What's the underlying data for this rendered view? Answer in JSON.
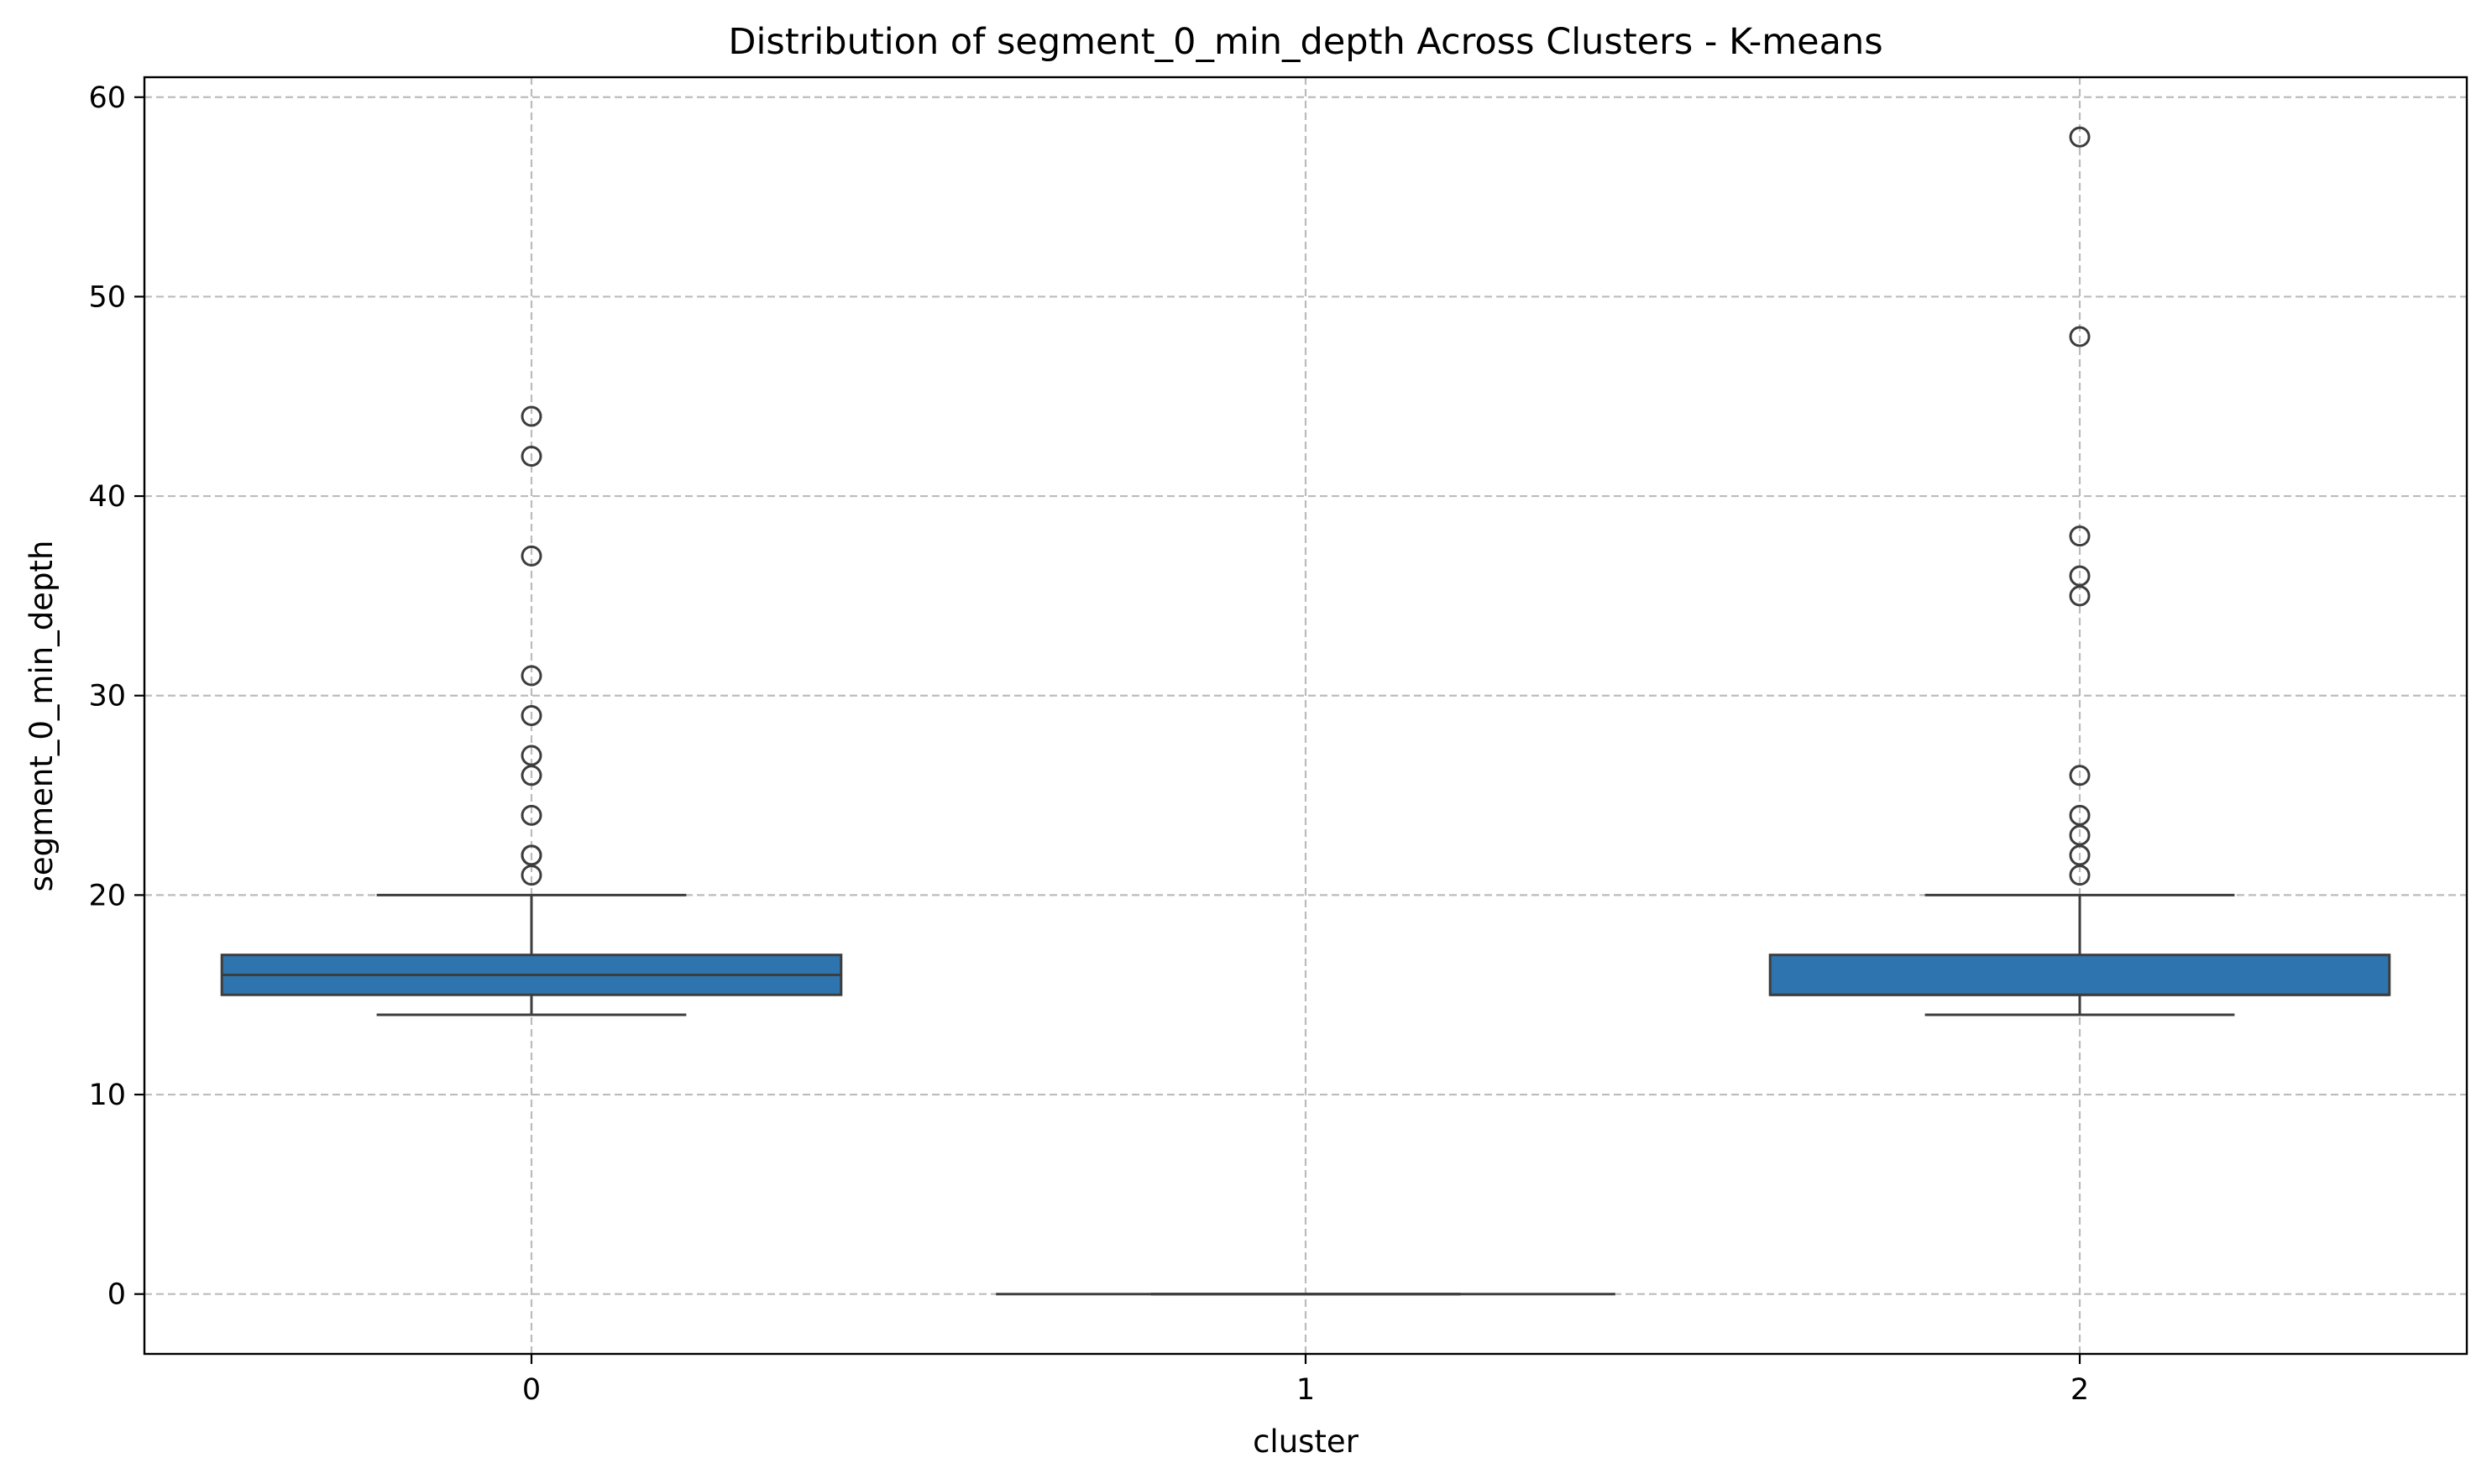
{
  "chart_data": {
    "type": "box",
    "title": "Distribution of segment_0_min_depth Across Clusters - K-means",
    "xlabel": "cluster",
    "ylabel": "segment_0_min_depth",
    "categories": [
      "0",
      "1",
      "2"
    ],
    "ylim": [
      -3,
      61
    ],
    "yticks": [
      0,
      10,
      20,
      30,
      40,
      50,
      60
    ],
    "grid": true,
    "box_color": "#2e75b0",
    "line_color": "#3d3d3d",
    "boxes": [
      {
        "category": "0",
        "q1": 15,
        "median": 16,
        "q3": 17,
        "whisker_low": 14,
        "whisker_high": 20,
        "fliers": [
          21,
          22,
          22,
          24,
          26,
          27,
          29,
          31,
          37,
          42,
          44
        ]
      },
      {
        "category": "1",
        "q1": 0,
        "median": 0,
        "q3": 0,
        "whisker_low": 0,
        "whisker_high": 0,
        "fliers": []
      },
      {
        "category": "2",
        "q1": 15,
        "median": 15,
        "q3": 17,
        "whisker_low": 14,
        "whisker_high": 20,
        "fliers": [
          21,
          22,
          23,
          24,
          26,
          35,
          36,
          38,
          48,
          58
        ]
      }
    ]
  }
}
